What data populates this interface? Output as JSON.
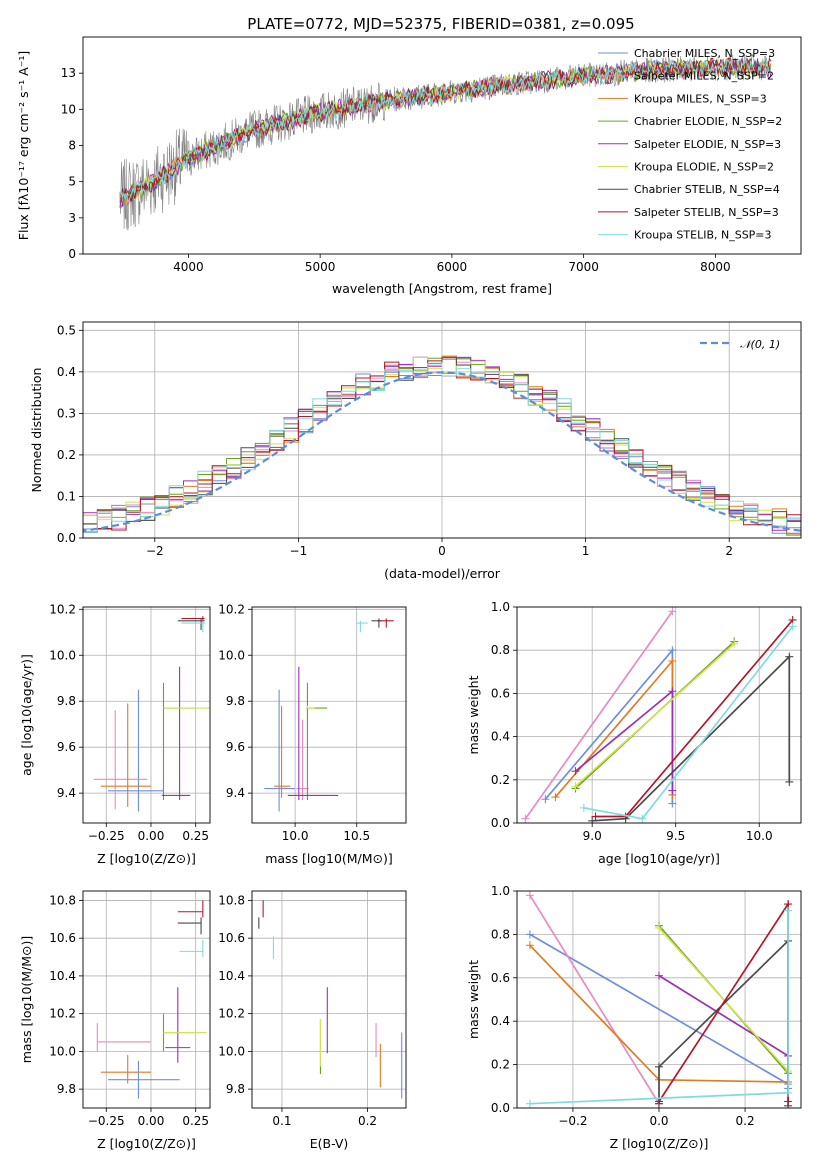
{
  "figure_title": "PLATE=0772, MJD=52375, FIBERID=0381, z=0.095",
  "chart_data": [
    {
      "id": "spectrum",
      "type": "line",
      "xlabel": "wavelength [Angstrom, rest frame]",
      "ylabel": "Flux [fλ10⁻¹⁷ erg cm⁻² s⁻¹ A⁻¹]",
      "xlim": [
        3200,
        8650
      ],
      "ylim": [
        0,
        15
      ],
      "xticks": [
        4000,
        5000,
        6000,
        7000,
        8000
      ],
      "yticks": [
        0.0,
        2.5,
        5.0,
        7.5,
        10.0,
        12.5
      ],
      "observed": {
        "color": "#808080",
        "wave_range": [
          3480,
          8420
        ]
      },
      "series": [
        {
          "name": "Chabrier MILES, N_SSP=3",
          "color": "#6d8fdc"
        },
        {
          "name": "Salpeter MILES, N_SSP=2",
          "color": "#e78ac3"
        },
        {
          "name": "Kroupa MILES, N_SSP=3",
          "color": "#e07b22"
        },
        {
          "name": "Chabrier ELODIE, N_SSP=2",
          "color": "#66a61e"
        },
        {
          "name": "Salpeter ELODIE, N_SSP=3",
          "color": "#9b30b3"
        },
        {
          "name": "Kroupa ELODIE, N_SSP=2",
          "color": "#d4e157"
        },
        {
          "name": "Chabrier STELIB, N_SSP=4",
          "color": "#4a4a4a"
        },
        {
          "name": "Salpeter STELIB, N_SSP=3",
          "color": "#b2182b"
        },
        {
          "name": "Kroupa STELIB, N_SSP=3",
          "color": "#7fdcdc"
        }
      ],
      "continuum": {
        "wave": [
          3480,
          3700,
          4000,
          4500,
          5000,
          5500,
          6000,
          6500,
          7000,
          7500,
          8000,
          8400
        ],
        "flux": [
          3.8,
          4.8,
          6.6,
          8.6,
          9.8,
          10.6,
          11.2,
          11.8,
          12.3,
          12.7,
          12.9,
          12.9
        ]
      },
      "legend_loc": "upper right"
    },
    {
      "id": "residuals",
      "type": "histogram",
      "xlabel": "(data-model)/error",
      "ylabel": "Normed distribution",
      "xlim": [
        -2.5,
        2.5
      ],
      "ylim": [
        0,
        0.52
      ],
      "xticks": [
        -2,
        -1,
        0,
        1,
        2
      ],
      "yticks": [
        0.0,
        0.1,
        0.2,
        0.3,
        0.4,
        0.5
      ],
      "reference": {
        "name": "𝒩(0, 1)",
        "color": "#5b8fd6"
      },
      "bin_width": 0.1,
      "grid": true,
      "legend_loc": "upper right"
    },
    {
      "id": "age_vs_Z",
      "type": "errorbar",
      "xlabel": "Z [log10(Z/Z⊙)]",
      "ylabel": "age  [log10(age/yr)]",
      "xlim": [
        -0.38,
        0.33
      ],
      "ylim": [
        9.27,
        10.21
      ],
      "xticks": [
        -0.25,
        0.0,
        0.25
      ],
      "yticks": [
        9.4,
        9.6,
        9.8,
        10.0,
        10.2
      ],
      "points": [
        {
          "x": -0.07,
          "xerr": [
            0.17,
            0.14
          ],
          "y": 9.41,
          "yerr": [
            0.09,
            0.44
          ],
          "color": "#6d8fdc"
        },
        {
          "x": -0.2,
          "xerr": [
            0.12,
            0.18
          ],
          "y": 9.46,
          "yerr": [
            0.13,
            0.3
          ],
          "color": "#e78ac3"
        },
        {
          "x": -0.13,
          "xerr": [
            0.15,
            0.13
          ],
          "y": 9.43,
          "yerr": [
            0.09,
            0.36
          ],
          "color": "#e07b22"
        },
        {
          "x": 0.07,
          "xerr": [
            0.0,
            0.19
          ],
          "y": 9.77,
          "yerr": [
            0.4,
            0.11
          ],
          "color": "#66a61e"
        },
        {
          "x": 0.16,
          "xerr": [
            0.1,
            0.06
          ],
          "y": 9.39,
          "yerr": [
            0.02,
            0.56
          ],
          "color": "#9b30b3"
        },
        {
          "x": 0.07,
          "xerr": [
            0.0,
            0.26
          ],
          "y": 9.77,
          "yerr": [
            0.0,
            0.0
          ],
          "color": "#d4e157"
        },
        {
          "x": 0.28,
          "xerr": [
            0.13,
            0.02
          ],
          "y": 10.15,
          "yerr": [
            0.04,
            0.01
          ],
          "color": "#4a4a4a"
        },
        {
          "x": 0.29,
          "xerr": [
            0.12,
            0.01
          ],
          "y": 10.16,
          "yerr": [
            0.02,
            0.01
          ],
          "color": "#b2182b"
        },
        {
          "x": 0.29,
          "xerr": [
            0.12,
            0.01
          ],
          "y": 10.14,
          "yerr": [
            0.04,
            0.01
          ],
          "color": "#7fdcdc"
        }
      ]
    },
    {
      "id": "age_vs_mass",
      "type": "errorbar",
      "xlabel": "mass [log10(M/M⊙)]",
      "ylabel": "",
      "xlim": [
        9.65,
        10.9
      ],
      "ylim": [
        9.27,
        10.21
      ],
      "xticks": [
        10.0,
        10.5
      ],
      "yticks": [
        9.4,
        9.6,
        9.8,
        10.0,
        10.2
      ],
      "points": [
        {
          "x": 9.87,
          "xerr": [
            0.12,
            0.13
          ],
          "y": 9.42,
          "yerr": [
            0.1,
            0.43
          ],
          "color": "#6d8fdc"
        },
        {
          "x": 10.06,
          "xerr": [
            0.05,
            0.05
          ],
          "y": 9.42,
          "yerr": [
            0.05,
            0.3
          ],
          "color": "#e78ac3"
        },
        {
          "x": 9.89,
          "xerr": [
            0.06,
            0.07
          ],
          "y": 9.43,
          "yerr": [
            0.05,
            0.35
          ],
          "color": "#e07b22"
        },
        {
          "x": 10.1,
          "xerr": [
            0.01,
            0.16
          ],
          "y": 9.77,
          "yerr": [
            0.4,
            0.11
          ],
          "color": "#66a61e"
        },
        {
          "x": 10.03,
          "xerr": [
            0.09,
            0.32
          ],
          "y": 9.39,
          "yerr": [
            0.02,
            0.56
          ],
          "color": "#9b30b3"
        },
        {
          "x": 10.1,
          "xerr": [
            0.01,
            0.06
          ],
          "y": 9.77,
          "yerr": [
            0.0,
            0.01
          ],
          "color": "#d4e157"
        },
        {
          "x": 10.68,
          "xerr": [
            0.06,
            0.02
          ],
          "y": 10.15,
          "yerr": [
            0.03,
            0.01
          ],
          "color": "#4a4a4a"
        },
        {
          "x": 10.74,
          "xerr": [
            0.07,
            0.06
          ],
          "y": 10.15,
          "yerr": [
            0.03,
            0.01
          ],
          "color": "#b2182b"
        },
        {
          "x": 10.53,
          "xerr": [
            0.03,
            0.06
          ],
          "y": 10.14,
          "yerr": [
            0.04,
            0.01
          ],
          "color": "#7fdcdc"
        }
      ]
    },
    {
      "id": "mass_weight_vs_age",
      "type": "line",
      "xlabel": "age  [log10(age/yr)]",
      "ylabel": "mass weight",
      "xlim": [
        8.55,
        10.25
      ],
      "ylim": [
        0,
        1.0
      ],
      "xticks": [
        9.0,
        9.5,
        10.0
      ],
      "yticks": [
        0.0,
        0.2,
        0.4,
        0.6,
        0.8,
        1.0
      ],
      "series": [
        {
          "color": "#6d8fdc",
          "x": [
            8.72,
            9.48,
            9.48
          ],
          "y": [
            0.11,
            0.8,
            0.09
          ]
        },
        {
          "color": "#e78ac3",
          "x": [
            8.6,
            9.48
          ],
          "y": [
            0.02,
            0.98
          ]
        },
        {
          "color": "#e07b22",
          "x": [
            8.78,
            9.48,
            9.48
          ],
          "y": [
            0.12,
            0.75,
            0.13
          ]
        },
        {
          "color": "#66a61e",
          "x": [
            8.9,
            9.85
          ],
          "y": [
            0.16,
            0.84
          ]
        },
        {
          "color": "#9b30b3",
          "x": [
            8.9,
            9.48,
            9.48
          ],
          "y": [
            0.24,
            0.61,
            0.15
          ]
        },
        {
          "color": "#d4e157",
          "x": [
            8.9,
            9.85
          ],
          "y": [
            0.17,
            0.83
          ]
        },
        {
          "color": "#4a4a4a",
          "x": [
            9.0,
            9.2,
            10.18,
            10.18
          ],
          "y": [
            0.01,
            0.02,
            0.77,
            0.19
          ]
        },
        {
          "color": "#b2182b",
          "x": [
            9.02,
            9.2,
            10.2
          ],
          "y": [
            0.03,
            0.03,
            0.94
          ]
        },
        {
          "color": "#7fdcdc",
          "x": [
            8.95,
            9.3,
            10.2
          ],
          "y": [
            0.07,
            0.02,
            0.91
          ]
        }
      ]
    },
    {
      "id": "mass_vs_Z",
      "type": "errorbar",
      "xlabel": "Z [log10(Z/Z⊙)]",
      "ylabel": "mass [log10(M/M⊙)]",
      "xlim": [
        -0.38,
        0.33
      ],
      "ylim": [
        9.7,
        10.85
      ],
      "xticks": [
        -0.25,
        0.0,
        0.25
      ],
      "yticks": [
        9.8,
        10.0,
        10.2,
        10.4,
        10.6,
        10.8
      ],
      "points": [
        {
          "x": -0.07,
          "xerr": [
            0.17,
            0.23
          ],
          "y": 9.85,
          "yerr": [
            0.1,
            0.1
          ],
          "color": "#6d8fdc"
        },
        {
          "x": -0.3,
          "xerr": [
            0.0,
            0.3
          ],
          "y": 10.05,
          "yerr": [
            0.05,
            0.1
          ],
          "color": "#e78ac3"
        },
        {
          "x": -0.13,
          "xerr": [
            0.15,
            0.13
          ],
          "y": 9.89,
          "yerr": [
            0.06,
            0.09
          ],
          "color": "#e07b22"
        },
        {
          "x": 0.07,
          "xerr": [
            0.0,
            0.19
          ],
          "y": 10.1,
          "yerr": [
            0.1,
            0.1
          ],
          "color": "#66a61e"
        },
        {
          "x": 0.15,
          "xerr": [
            0.07,
            0.07
          ],
          "y": 10.02,
          "yerr": [
            0.08,
            0.32
          ],
          "color": "#9b30b3"
        },
        {
          "x": 0.07,
          "xerr": [
            0.0,
            0.24
          ],
          "y": 10.1,
          "yerr": [
            0.0,
            0.0
          ],
          "color": "#d4e157"
        },
        {
          "x": 0.28,
          "xerr": [
            0.13,
            0.0
          ],
          "y": 10.68,
          "yerr": [
            0.06,
            0.03
          ],
          "color": "#4a4a4a"
        },
        {
          "x": 0.29,
          "xerr": [
            0.14,
            0.0
          ],
          "y": 10.74,
          "yerr": [
            0.03,
            0.06
          ],
          "color": "#b2182b"
        },
        {
          "x": 0.29,
          "xerr": [
            0.13,
            0.0
          ],
          "y": 10.53,
          "yerr": [
            0.03,
            0.06
          ],
          "color": "#7fdcdc"
        }
      ]
    },
    {
      "id": "mass_vs_EBV",
      "type": "errorbar",
      "xlabel": "E(B-V)",
      "ylabel": "",
      "xlim": [
        0.065,
        0.245
      ],
      "ylim": [
        9.7,
        10.85
      ],
      "xticks": [
        0.1,
        0.2
      ],
      "yticks": [
        9.8,
        10.0,
        10.2,
        10.4,
        10.6,
        10.8
      ],
      "points": [
        {
          "x": 0.24,
          "xerr": [
            0,
            0
          ],
          "y": 9.85,
          "yerr": [
            0.1,
            0.25
          ],
          "color": "#6d8fdc"
        },
        {
          "x": 0.21,
          "xerr": [
            0,
            0
          ],
          "y": 10.05,
          "yerr": [
            0.08,
            0.1
          ],
          "color": "#e78ac3"
        },
        {
          "x": 0.215,
          "xerr": [
            0,
            0
          ],
          "y": 9.89,
          "yerr": [
            0.08,
            0.15
          ],
          "color": "#e07b22"
        },
        {
          "x": 0.145,
          "xerr": [
            0,
            0
          ],
          "y": 10.1,
          "yerr": [
            0.22,
            0.07
          ],
          "color": "#66a61e"
        },
        {
          "x": 0.153,
          "xerr": [
            0,
            0
          ],
          "y": 10.02,
          "yerr": [
            0.03,
            0.32
          ],
          "color": "#9b30b3"
        },
        {
          "x": 0.145,
          "xerr": [
            0,
            0
          ],
          "y": 10.1,
          "yerr": [
            0.18,
            0.07
          ],
          "color": "#d4e157"
        },
        {
          "x": 0.073,
          "xerr": [
            0,
            0
          ],
          "y": 10.68,
          "yerr": [
            0.03,
            0.03
          ],
          "color": "#4a4a4a"
        },
        {
          "x": 0.078,
          "xerr": [
            0,
            0
          ],
          "y": 10.74,
          "yerr": [
            0.03,
            0.06
          ],
          "color": "#b2182b"
        },
        {
          "x": 0.09,
          "xerr": [
            0,
            0
          ],
          "y": 10.53,
          "yerr": [
            0.04,
            0.08
          ],
          "color": "#7fdcdc"
        }
      ]
    },
    {
      "id": "mass_weight_vs_Z",
      "type": "line",
      "xlabel": "Z [log10(Z/Z⊙)]",
      "ylabel": "mass weight",
      "xlim": [
        -0.33,
        0.33
      ],
      "ylim": [
        0,
        1.0
      ],
      "xticks": [
        -0.2,
        0.0,
        0.2
      ],
      "yticks": [
        0.0,
        0.2,
        0.4,
        0.6,
        0.8,
        1.0
      ],
      "series": [
        {
          "color": "#6d8fdc",
          "x": [
            -0.3,
            0.3,
            0.3
          ],
          "y": [
            0.8,
            0.11,
            0.09
          ]
        },
        {
          "color": "#e78ac3",
          "x": [
            -0.3,
            0.0
          ],
          "y": [
            0.98,
            0.02
          ]
        },
        {
          "color": "#e07b22",
          "x": [
            -0.3,
            0.0,
            0.3
          ],
          "y": [
            0.75,
            0.13,
            0.12
          ]
        },
        {
          "color": "#66a61e",
          "x": [
            0.0,
            0.3
          ],
          "y": [
            0.84,
            0.16
          ]
        },
        {
          "color": "#9b30b3",
          "x": [
            0.0,
            0.3
          ],
          "y": [
            0.61,
            0.24
          ]
        },
        {
          "color": "#d4e157",
          "x": [
            0.0,
            0.3
          ],
          "y": [
            0.83,
            0.17
          ]
        },
        {
          "color": "#4a4a4a",
          "x": [
            0.0,
            0.0,
            0.3,
            0.3
          ],
          "y": [
            0.02,
            0.19,
            0.77,
            0.01
          ]
        },
        {
          "color": "#b2182b",
          "x": [
            0.0,
            0.3,
            0.3
          ],
          "y": [
            0.03,
            0.94,
            0.03
          ]
        },
        {
          "color": "#7fdcdc",
          "x": [
            -0.3,
            0.3,
            0.3
          ],
          "y": [
            0.02,
            0.07,
            0.91
          ]
        }
      ]
    }
  ]
}
